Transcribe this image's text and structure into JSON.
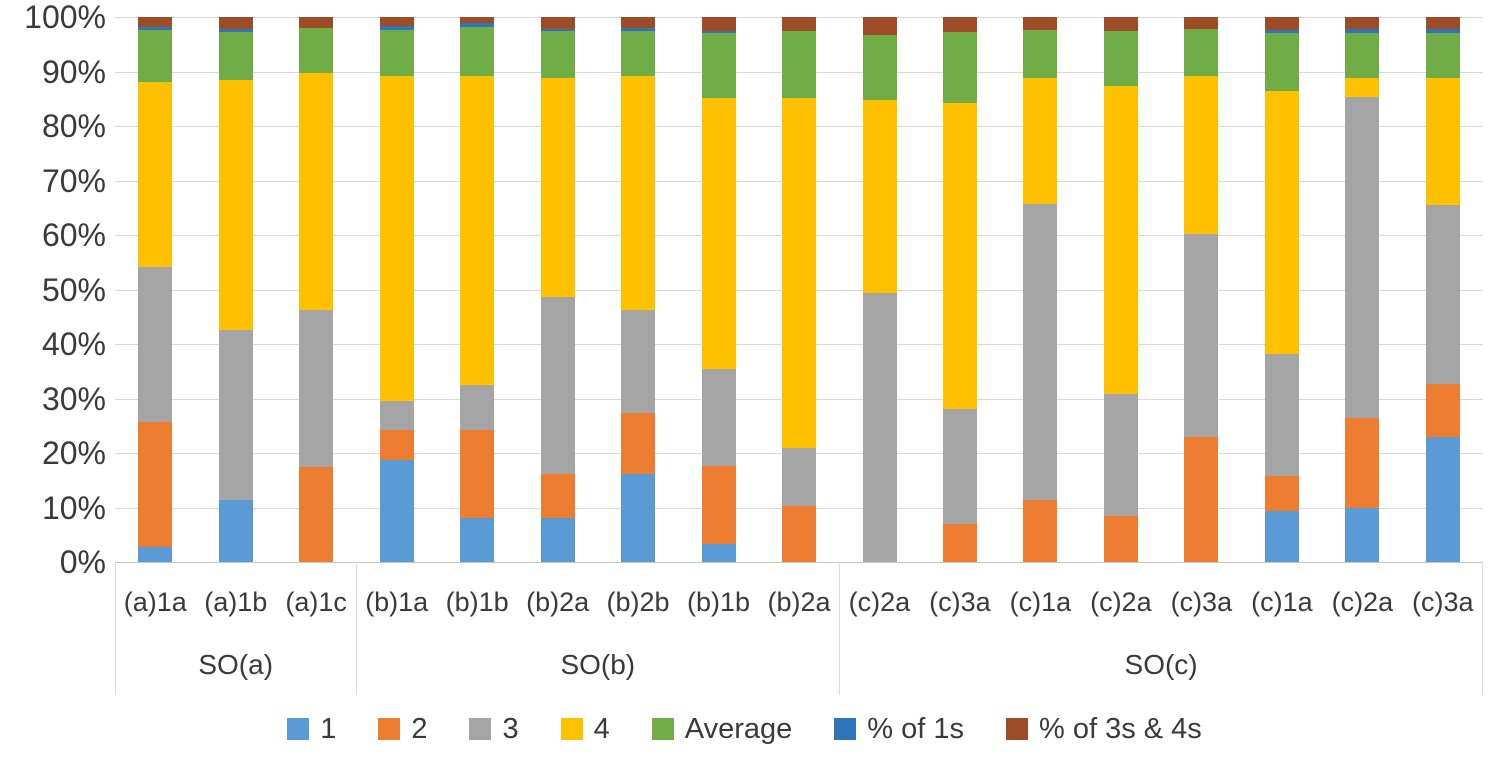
{
  "chart_data": {
    "type": "bar",
    "variant": "stacked_100_percent",
    "title": "",
    "xlabel": "",
    "ylabel": "",
    "y_axis": {
      "min": 0,
      "max": 100,
      "grid": true,
      "ticks": [
        "0%",
        "10%",
        "20%",
        "30%",
        "40%",
        "50%",
        "60%",
        "70%",
        "80%",
        "90%",
        "100%"
      ]
    },
    "x_axis": {
      "categories": [
        "(a)1a",
        "(a)1b",
        "(a)1c",
        "(b)1a",
        "(b)1b",
        "(b)2a",
        "(b)2b",
        "(b)1b",
        "(b)2a",
        "(c)2a",
        "(c)3a",
        "(c)1a",
        "(c)2a",
        "(c)3a",
        "(c)1a",
        "(c)2a",
        "(c)3a"
      ],
      "groups": [
        {
          "label": "SO(a)",
          "span": 3
        },
        {
          "label": "SO(b)",
          "span": 6
        },
        {
          "label": "SO(c)",
          "span": 8
        }
      ]
    },
    "legend_position": "bottom",
    "series": [
      {
        "name": "1",
        "color": "#5B9BD5",
        "values": [
          2.8,
          11.4,
          0,
          18.8,
          8.0,
          8.0,
          16.1,
          3.4,
          0,
          0,
          0,
          0,
          0,
          0,
          9.4,
          9.9,
          22.9
        ]
      },
      {
        "name": "2",
        "color": "#ED7D31",
        "values": [
          22.8,
          0,
          17.4,
          5.4,
          16.2,
          8.1,
          11.2,
          14.2,
          10.3,
          0,
          6.9,
          11.3,
          8.4,
          22.9,
          6.4,
          16.5,
          9.8
        ]
      },
      {
        "name": "3",
        "color": "#A5A5A5",
        "values": [
          28.6,
          31.1,
          28.8,
          5.3,
          8.3,
          32.5,
          19.0,
          17.9,
          10.7,
          49.3,
          21.2,
          54.4,
          22.4,
          37.3,
          22.4,
          58.9,
          32.8
        ]
      },
      {
        "name": "4",
        "color": "#FFC000",
        "values": [
          33.9,
          45.9,
          43.6,
          59.7,
          56.7,
          40.2,
          42.9,
          49.6,
          64.2,
          35.4,
          56.1,
          23.1,
          56.5,
          29.0,
          48.3,
          3.6,
          23.4
        ]
      },
      {
        "name": "Average",
        "color": "#70AD47",
        "values": [
          9.5,
          8.8,
          8.2,
          8.4,
          9.0,
          8.6,
          8.2,
          11.9,
          12.2,
          12.1,
          13.0,
          8.9,
          10.2,
          8.6,
          10.5,
          8.1,
          8.1
        ]
      },
      {
        "name": "% of 1s",
        "color": "#2E75B6",
        "values": [
          0.6,
          0.6,
          0,
          0.8,
          0.7,
          0.5,
          0.7,
          0.5,
          0,
          0,
          0,
          0,
          0,
          0,
          0.7,
          0.8,
          0.8
        ]
      },
      {
        "name": "% of 3s & 4s",
        "color": "#9E4B28",
        "values": [
          1.8,
          2.2,
          2.0,
          1.6,
          1.1,
          2.1,
          1.9,
          2.5,
          2.6,
          3.2,
          2.8,
          2.3,
          2.5,
          2.2,
          2.3,
          2.2,
          2.2
        ]
      }
    ]
  },
  "colors": {
    "gridline": "#d9d9d9",
    "axis_line": "#c6c6c6",
    "text": "#3a3a3a"
  }
}
